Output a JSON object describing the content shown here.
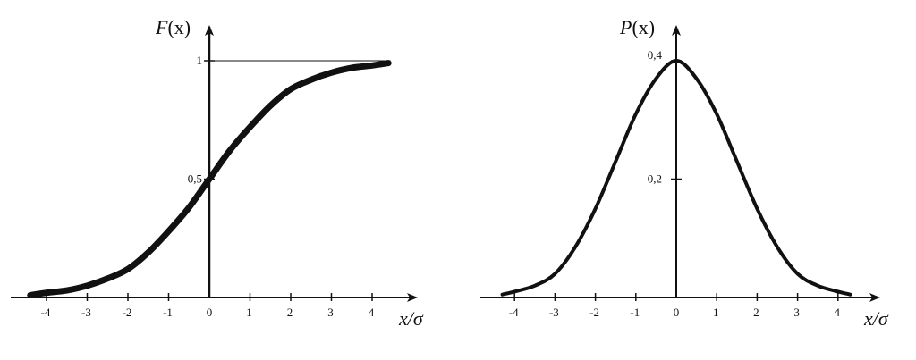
{
  "chart_data": [
    {
      "type": "line",
      "title": "",
      "ylabel_var": "F",
      "ylabel_arg": "(x)",
      "xlabel": "x/σ",
      "xlim": [
        -4.5,
        4.5
      ],
      "ylim": [
        0,
        1
      ],
      "x_ticks": [
        -4,
        -3,
        -2,
        -1,
        0,
        1,
        2,
        3,
        4
      ],
      "x_tick_labels": [
        "-4",
        "-3",
        "-2",
        "-1",
        "0",
        "1",
        "2",
        "3",
        "4"
      ],
      "y_ticks": [
        {
          "value": 0.5,
          "label": "0,5"
        },
        {
          "value": 1,
          "label": "1"
        }
      ],
      "reference_line": 1,
      "grid": false,
      "series": [
        {
          "x": [
            -4.4,
            -4.0,
            -3.5,
            -3.0,
            -2.5,
            -2.0,
            -1.5,
            -1.0,
            -0.5,
            0.0,
            0.5,
            1.0,
            1.5,
            2.0,
            2.5,
            3.0,
            3.5,
            4.0,
            4.4
          ],
          "y": [
            0.01,
            0.02,
            0.03,
            0.05,
            0.08,
            0.12,
            0.19,
            0.28,
            0.38,
            0.5,
            0.62,
            0.72,
            0.81,
            0.88,
            0.92,
            0.95,
            0.97,
            0.98,
            0.99
          ]
        }
      ]
    },
    {
      "type": "line",
      "title": "",
      "ylabel_var": "P",
      "ylabel_arg": "(x)",
      "xlabel": "x/σ",
      "xlim": [
        -4.5,
        5.0
      ],
      "ylim": [
        0,
        0.4
      ],
      "x_ticks": [
        -4,
        -3,
        -2,
        -1,
        0,
        1,
        2,
        3,
        4
      ],
      "x_tick_labels": [
        "-4",
        "-3",
        "-2",
        "-1",
        "0",
        "1",
        "2",
        "3",
        "4"
      ],
      "y_ticks": [
        {
          "value": 0.2,
          "label": "0,2"
        },
        {
          "value": 0.4,
          "label": "0,4"
        }
      ],
      "grid": false,
      "series": [
        {
          "x": [
            -4.3,
            -4.0,
            -3.5,
            -3.0,
            -2.5,
            -2.0,
            -1.5,
            -1.0,
            -0.5,
            0.0,
            0.5,
            1.0,
            1.5,
            2.0,
            2.5,
            3.0,
            3.5,
            4.0,
            4.3
          ],
          "y": [
            0.005,
            0.01,
            0.02,
            0.04,
            0.085,
            0.15,
            0.23,
            0.31,
            0.37,
            0.4,
            0.37,
            0.31,
            0.23,
            0.15,
            0.085,
            0.04,
            0.02,
            0.01,
            0.005
          ]
        }
      ]
    }
  ]
}
